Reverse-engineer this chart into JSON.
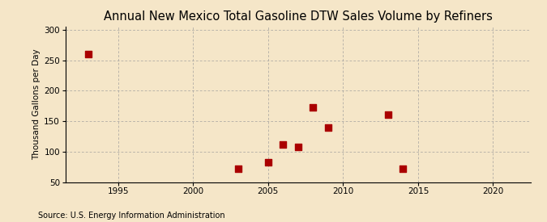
{
  "title": "Annual New Mexico Total Gasoline DTW Sales Volume by Refiners",
  "ylabel": "Thousand Gallons per Day",
  "source": "Source: U.S. Energy Information Administration",
  "background_color": "#f5e6c8",
  "x_data": [
    1993,
    2003,
    2005,
    2006,
    2007,
    2008,
    2009,
    2013,
    2014
  ],
  "y_data": [
    260,
    72,
    83,
    112,
    107,
    172,
    140,
    160,
    72
  ],
  "marker_color": "#aa0000",
  "marker_size": 28,
  "xlim": [
    1991.5,
    2022.5
  ],
  "ylim": [
    50,
    305
  ],
  "xticks": [
    1995,
    2000,
    2005,
    2010,
    2015,
    2020
  ],
  "yticks": [
    50,
    100,
    150,
    200,
    250,
    300
  ],
  "grid_color": "#999999",
  "title_fontsize": 10.5,
  "label_fontsize": 7.5,
  "tick_fontsize": 7.5,
  "source_fontsize": 7
}
